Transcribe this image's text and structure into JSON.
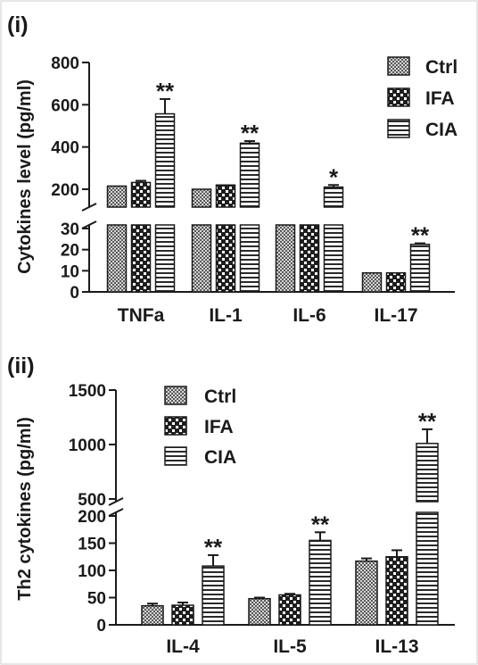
{
  "chart_data": [
    {
      "type": "bar",
      "panel_label": "(i)",
      "ylabel": "Cytokines level (pg/ml)",
      "categories": [
        "TNFa",
        "IL-1",
        "IL-6",
        "IL-17"
      ],
      "series": [
        {
          "name": "Ctrl",
          "values": [
            215,
            200,
            120,
            9
          ],
          "errors": [
            4,
            3,
            4,
            0.3
          ],
          "pattern": "checker"
        },
        {
          "name": "IFA",
          "values": [
            232,
            220,
            140,
            9
          ],
          "errors": [
            8,
            4,
            8,
            0.3
          ],
          "pattern": "dots"
        },
        {
          "name": "CIA",
          "values": [
            557,
            418,
            210,
            22.5
          ],
          "errors": [
            70,
            10,
            10,
            0.5
          ],
          "pattern": "hstripes"
        }
      ],
      "significance": [
        "**",
        "**",
        "*",
        "**"
      ],
      "axis_break": {
        "lower": [
          0,
          30
        ],
        "upper": [
          200,
          800
        ]
      },
      "yticks": [
        0,
        10,
        20,
        30,
        200,
        400,
        600,
        800
      ],
      "legend_position": "top-right"
    },
    {
      "type": "bar",
      "panel_label": "(ii)",
      "ylabel": "Th2 cytokines (pg/ml)",
      "categories": [
        "IL-4",
        "IL-5",
        "IL-13"
      ],
      "series": [
        {
          "name": "Ctrl",
          "values": [
            35,
            48,
            117
          ],
          "errors": [
            4,
            2,
            5
          ],
          "pattern": "checker"
        },
        {
          "name": "IFA",
          "values": [
            36,
            55,
            125
          ],
          "errors": [
            5,
            2,
            12
          ],
          "pattern": "dots"
        },
        {
          "name": "CIA",
          "values": [
            108,
            155,
            1010
          ],
          "errors": [
            20,
            15,
            130
          ],
          "pattern": "hstripes"
        }
      ],
      "significance": [
        "**",
        "**",
        "**"
      ],
      "axis_break": {
        "lower": [
          0,
          200
        ],
        "upper": [
          500,
          1500
        ]
      },
      "yticks": [
        0,
        50,
        100,
        150,
        200,
        500,
        1000,
        1500
      ],
      "legend_position": "top-left"
    }
  ]
}
